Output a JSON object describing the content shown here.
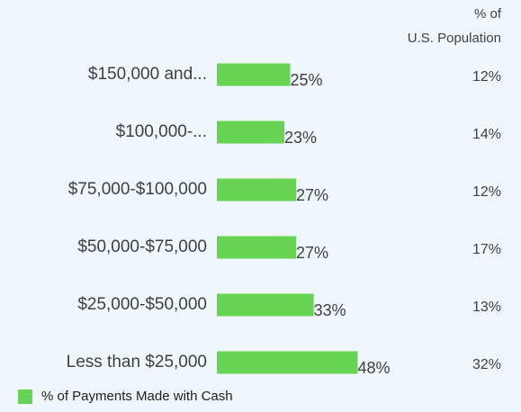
{
  "chart_data": {
    "type": "bar",
    "orientation": "horizontal",
    "categories": [
      "$150,000 and...",
      "$100,000-...",
      "$75,000-$100,000",
      "$50,000-$75,000",
      "$25,000-$50,000",
      "Less than $25,000"
    ],
    "series": [
      {
        "name": "% of Payments Made with Cash",
        "color": "#66d452",
        "values": [
          25,
          23,
          27,
          27,
          33,
          48
        ],
        "value_labels": [
          "25%",
          "23%",
          "27%",
          "27%",
          "33%",
          "48%"
        ]
      }
    ],
    "side_column": {
      "header": [
        "% of",
        "U.S. Population"
      ],
      "values": [
        12,
        14,
        12,
        17,
        13,
        32
      ],
      "value_labels": [
        "12%",
        "14%",
        "12%",
        "17%",
        "13%",
        "32%"
      ]
    }
  }
}
